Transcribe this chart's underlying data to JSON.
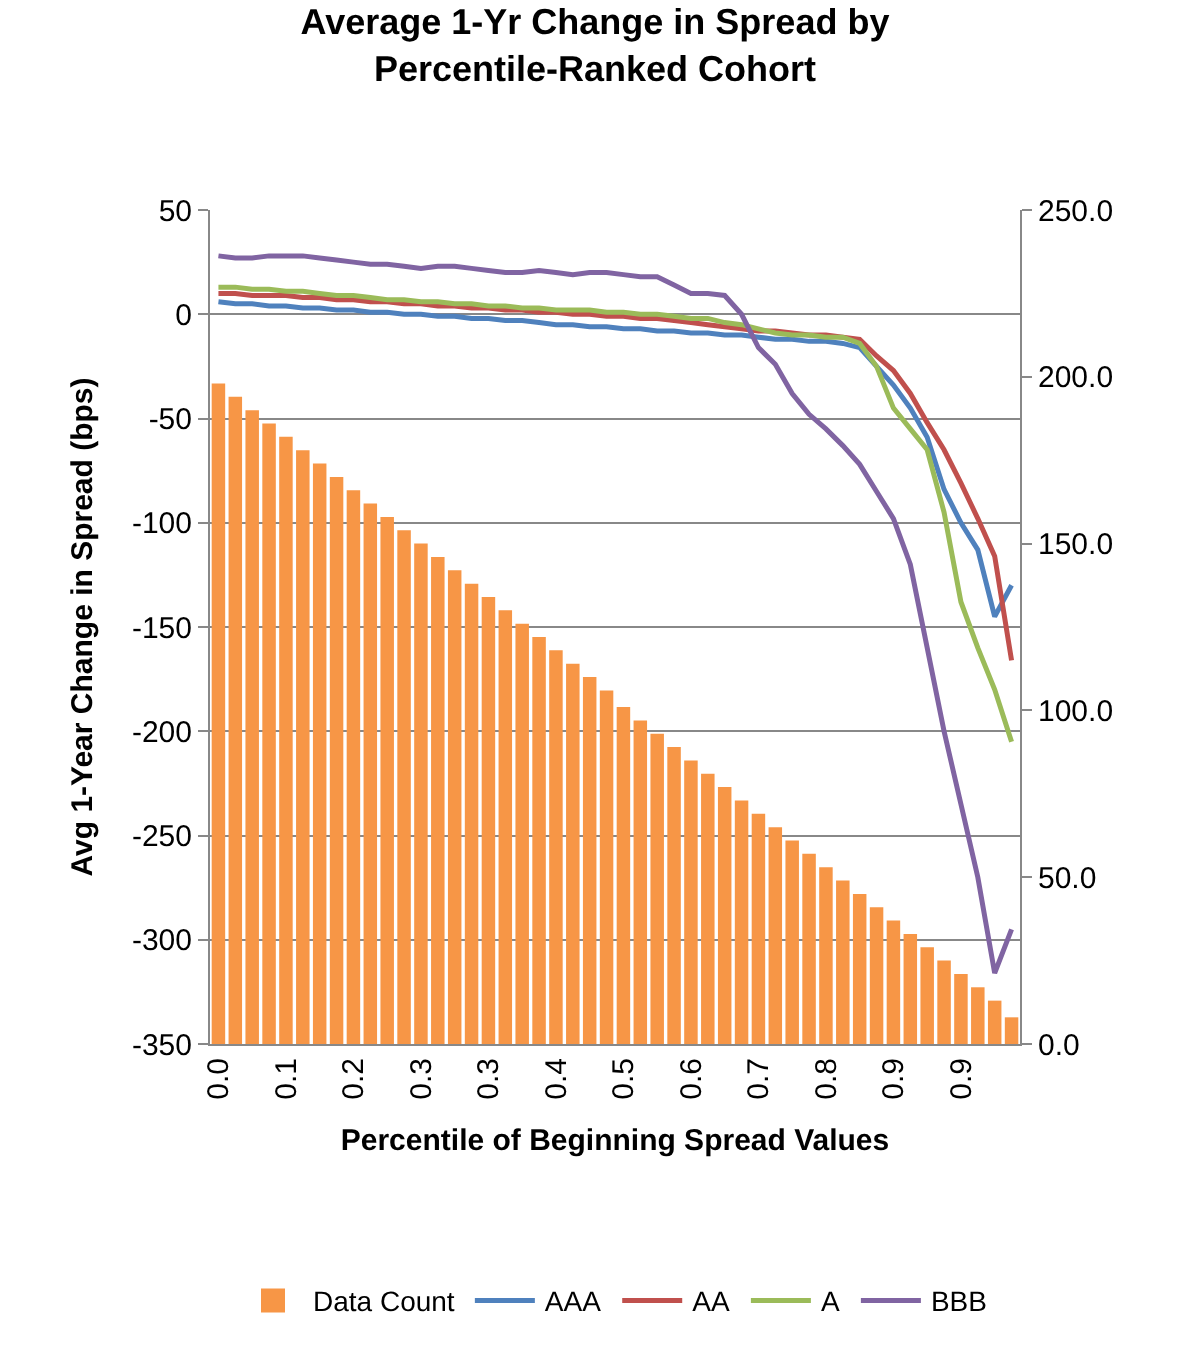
{
  "chart_data": {
    "type": "line",
    "title": "Average 1-Yr Change in Spread by Percentile-Ranked Cohort",
    "xlabel": "Percentile of Beginning Spread Values",
    "ylabel": "Avg 1-Year Change in Spread (bps)",
    "categories": [
      "0.0",
      null,
      null,
      null,
      "0.1",
      null,
      null,
      null,
      "0.2",
      null,
      null,
      null,
      "0.3",
      null,
      null,
      null,
      "0.3",
      null,
      null,
      null,
      "0.4",
      null,
      null,
      null,
      "0.5",
      null,
      null,
      null,
      "0.6",
      null,
      null,
      null,
      "0.7",
      null,
      null,
      null,
      "0.8",
      null,
      null,
      null,
      "0.9",
      null,
      null,
      null,
      "0.9",
      null,
      null,
      null
    ],
    "series": [
      {
        "name": "Data Count",
        "type": "bar",
        "axis": "y2",
        "color": "#f79646",
        "values": [
          198,
          194,
          190,
          186,
          182,
          178,
          174,
          170,
          166,
          162,
          158,
          154,
          150,
          146,
          142,
          138,
          134,
          130,
          126,
          122,
          118,
          114,
          110,
          106,
          101,
          97,
          93,
          89,
          85,
          81,
          77,
          73,
          69,
          65,
          61,
          57,
          53,
          49,
          45,
          41,
          37,
          33,
          29,
          25,
          21,
          17,
          13,
          8
        ]
      },
      {
        "name": "AAA",
        "color": "#4f81bd",
        "values": [
          6,
          5,
          5,
          4,
          4,
          3,
          3,
          2,
          2,
          1,
          1,
          0,
          0,
          -1,
          -1,
          -2,
          -2,
          -3,
          -3,
          -4,
          -5,
          -5,
          -6,
          -6,
          -7,
          -7,
          -8,
          -8,
          -9,
          -9,
          -10,
          -10,
          -11,
          -12,
          -12,
          -13,
          -13,
          -14,
          -16,
          -25,
          -34,
          -45,
          -59,
          -84,
          -100,
          -113,
          -145,
          -130
        ]
      },
      {
        "name": "AA",
        "color": "#c0504d",
        "values": [
          10,
          10,
          9,
          9,
          9,
          8,
          8,
          7,
          7,
          6,
          6,
          5,
          5,
          4,
          4,
          3,
          3,
          2,
          2,
          1,
          1,
          0,
          0,
          -1,
          -1,
          -2,
          -2,
          -3,
          -4,
          -5,
          -6,
          -7,
          -8,
          -8,
          -9,
          -10,
          -10,
          -11,
          -12,
          -20,
          -27,
          -38,
          -52,
          -65,
          -81,
          -98,
          -116,
          -166
        ]
      },
      {
        "name": "A",
        "color": "#9bbb59",
        "values": [
          13,
          13,
          12,
          12,
          11,
          11,
          10,
          9,
          9,
          8,
          7,
          7,
          6,
          6,
          5,
          5,
          4,
          4,
          3,
          3,
          2,
          2,
          2,
          1,
          1,
          0,
          0,
          -1,
          -2,
          -2,
          -4,
          -5,
          -7,
          -9,
          -10,
          -10,
          -11,
          -11,
          -14,
          -25,
          -45,
          -55,
          -65,
          -95,
          -138,
          -160,
          -180,
          -205
        ]
      },
      {
        "name": "BBB",
        "color": "#8064a2",
        "values": [
          28,
          27,
          27,
          28,
          28,
          28,
          27,
          26,
          25,
          24,
          24,
          23,
          22,
          23,
          23,
          22,
          21,
          20,
          20,
          21,
          20,
          19,
          20,
          20,
          19,
          18,
          18,
          14,
          10,
          10,
          9,
          0,
          -16,
          -24,
          -38,
          -48,
          -55,
          -63,
          -72,
          -85,
          -98,
          -120,
          -160,
          -200,
          -235,
          -270,
          -316,
          -295
        ]
      }
    ],
    "ylim": [
      -350,
      50
    ],
    "yticks": [
      -350,
      -300,
      -250,
      -200,
      -150,
      -100,
      -50,
      0,
      50
    ],
    "y2lim": [
      0,
      250
    ],
    "y2ticks": [
      {
        "value": 0,
        "label": "0.0"
      },
      {
        "value": 50,
        "label": "50.0"
      },
      {
        "value": 100,
        "label": "100.0"
      },
      {
        "value": 150,
        "label": "150.0"
      },
      {
        "value": 200,
        "label": "200.0"
      },
      {
        "value": 250,
        "label": "250.0"
      }
    ],
    "grid": "y",
    "legend": "bottom",
    "marker": "none",
    "line_style": "solid"
  }
}
